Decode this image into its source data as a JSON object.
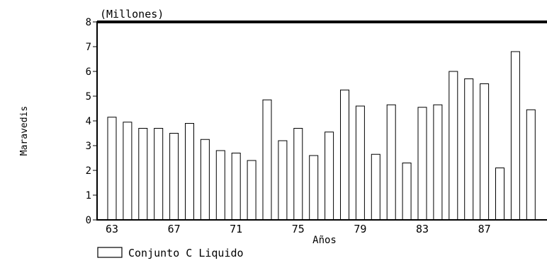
{
  "chart_data": {
    "type": "bar",
    "title": "",
    "unit_label": "(Millones)",
    "ylabel": "Maravedis",
    "xlabel": "Años",
    "ylim": [
      0,
      8
    ],
    "yticks": [
      "0",
      "1",
      "2",
      "3",
      "4",
      "5",
      "6",
      "7",
      "8"
    ],
    "categories": [
      "63",
      "64",
      "65",
      "66",
      "67",
      "68",
      "69",
      "70",
      "71",
      "72",
      "73",
      "74",
      "75",
      "76",
      "77",
      "78",
      "79",
      "80",
      "81",
      "82",
      "83",
      "84",
      "85",
      "86",
      "87",
      "88",
      "89",
      "90"
    ],
    "xtick_labels": [
      "63",
      "67",
      "71",
      "75",
      "79",
      "83",
      "87"
    ],
    "series": [
      {
        "name": "Conjunto C Liquido",
        "values": [
          4.15,
          3.95,
          3.7,
          3.7,
          3.5,
          3.9,
          3.25,
          2.8,
          2.7,
          2.4,
          4.85,
          3.2,
          3.7,
          2.6,
          3.55,
          5.25,
          4.6,
          2.65,
          4.65,
          2.3,
          4.55,
          4.65,
          6.0,
          5.7,
          5.5,
          2.1,
          6.8,
          4.45
        ]
      }
    ],
    "grid": false,
    "legend_position": "bottom-left"
  }
}
